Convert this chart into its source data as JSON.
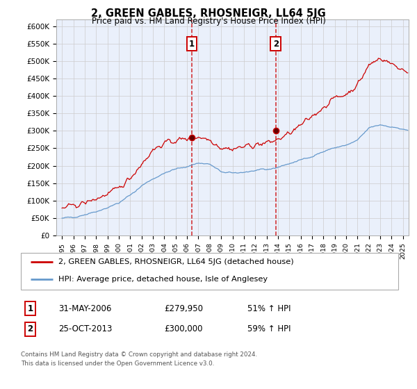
{
  "title": "2, GREEN GABLES, RHOSNEIGR, LL64 5JG",
  "subtitle": "Price paid vs. HM Land Registry's House Price Index (HPI)",
  "legend_line1": "2, GREEN GABLES, RHOSNEIGR, LL64 5JG (detached house)",
  "legend_line2": "HPI: Average price, detached house, Isle of Anglesey",
  "footnote": "Contains HM Land Registry data © Crown copyright and database right 2024.\nThis data is licensed under the Open Government Licence v3.0.",
  "sale1_label": "1",
  "sale1_date": "31-MAY-2006",
  "sale1_price": "£279,950",
  "sale1_hpi": "51% ↑ HPI",
  "sale1_year": 2006.42,
  "sale1_value": 279950,
  "sale2_label": "2",
  "sale2_date": "25-OCT-2013",
  "sale2_price": "£300,000",
  "sale2_hpi": "59% ↑ HPI",
  "sale2_year": 2013.81,
  "sale2_value": 300000,
  "red_color": "#cc0000",
  "blue_color": "#6699cc",
  "background_color": "#eaf0fb",
  "ylim": [
    0,
    620000
  ],
  "yticks": [
    0,
    50000,
    100000,
    150000,
    200000,
    250000,
    300000,
    350000,
    400000,
    450000,
    500000,
    550000,
    600000
  ],
  "xlim": [
    1994.5,
    2025.5
  ],
  "xticks": [
    1995,
    1996,
    1997,
    1998,
    1999,
    2000,
    2001,
    2002,
    2003,
    2004,
    2005,
    2006,
    2007,
    2008,
    2009,
    2010,
    2011,
    2012,
    2013,
    2014,
    2015,
    2016,
    2017,
    2018,
    2019,
    2020,
    2021,
    2022,
    2023,
    2024,
    2025
  ],
  "hpi_years": [
    1995,
    1996,
    1997,
    1998,
    1999,
    2000,
    2001,
    2002,
    2003,
    2004,
    2005,
    2006,
    2007,
    2008,
    2009,
    2010,
    2011,
    2012,
    2013,
    2014,
    2015,
    2016,
    2017,
    2018,
    2019,
    2020,
    2021,
    2022,
    2023,
    2024,
    2025.5
  ],
  "hpi_vals": [
    48000,
    53000,
    60000,
    69000,
    80000,
    93000,
    115000,
    142000,
    163000,
    178000,
    190000,
    198000,
    208000,
    204000,
    182000,
    178000,
    182000,
    185000,
    188000,
    196000,
    206000,
    216000,
    228000,
    240000,
    252000,
    258000,
    272000,
    308000,
    318000,
    312000,
    300000
  ],
  "red_years": [
    1995,
    1996,
    1997,
    1998,
    1999,
    2000,
    2001,
    2002,
    2003,
    2004,
    2005,
    2006,
    2007,
    2008,
    2009,
    2010,
    2011,
    2012,
    2013,
    2014,
    2015,
    2016,
    2017,
    2018,
    2019,
    2020,
    2021,
    2022,
    2023,
    2024,
    2025.5
  ],
  "red_vals": [
    78000,
    85000,
    93000,
    105000,
    118000,
    135000,
    165000,
    205000,
    245000,
    265000,
    272000,
    278000,
    283000,
    275000,
    252000,
    248000,
    255000,
    260000,
    265000,
    275000,
    292000,
    315000,
    342000,
    368000,
    395000,
    405000,
    432000,
    488000,
    510000,
    492000,
    468000
  ]
}
